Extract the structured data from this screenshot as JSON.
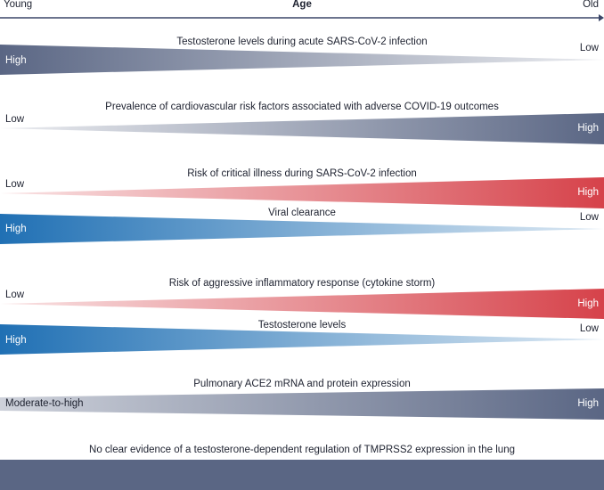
{
  "axis": {
    "left_label": "Young",
    "center_label": "Age",
    "right_label": "Old"
  },
  "rows": [
    {
      "id": "testosterone-acute",
      "title": "Testosterone levels during acute SARS-CoV-2 infection",
      "left": "High",
      "right": "Low",
      "trend": "decreasing",
      "color": "#5a6684"
    },
    {
      "id": "cv-risk",
      "title": "Prevalence of cardiovascular risk factors associated with adverse COVID-19 outcomes",
      "left": "Low",
      "right": "High",
      "trend": "increasing",
      "color": "#5a6684"
    },
    {
      "id": "critical-illness",
      "title": "Risk of critical illness during SARS-CoV-2 infection",
      "left": "Low",
      "right": "High",
      "trend": "increasing",
      "color": "#d6424a"
    },
    {
      "id": "viral-clearance",
      "title": "Viral clearance",
      "left": "High",
      "right": "Low",
      "trend": "decreasing",
      "color": "#2070b4"
    },
    {
      "id": "inflammatory",
      "title": "Risk of aggressive inflammatory response (cytokine storm)",
      "left": "Low",
      "right": "High",
      "trend": "increasing",
      "color": "#d6424a"
    },
    {
      "id": "testosterone",
      "title": "Testosterone levels",
      "left": "High",
      "right": "Low",
      "trend": "decreasing",
      "color": "#2070b4"
    },
    {
      "id": "ace2",
      "title": "Pulmonary ACE2 mRNA and protein expression",
      "left": "Moderate-to-high",
      "right": "High",
      "trend": "increasing",
      "color": "#5a6684"
    },
    {
      "id": "tmprss2",
      "title": "No clear evidence of a testosterone-dependent regulation of TMPRSS2 expression in the lung",
      "left": "",
      "right": "",
      "trend": "constant",
      "color": "#5a6684"
    }
  ]
}
